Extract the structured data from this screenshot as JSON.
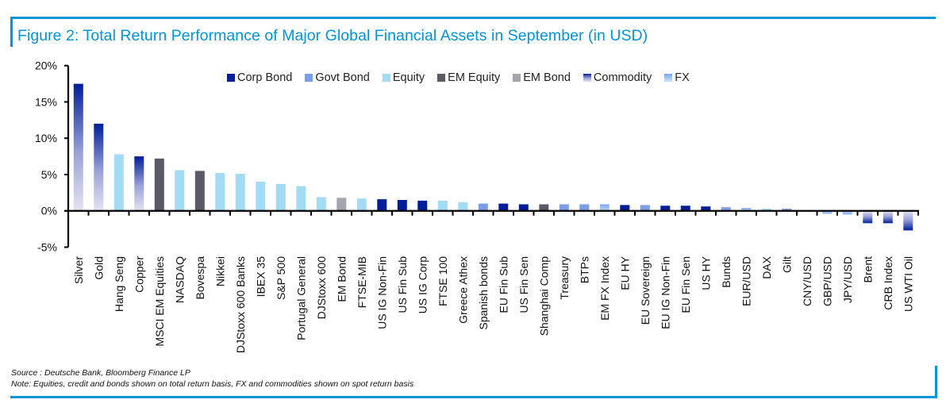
{
  "figure": {
    "title": "Figure 2: Total Return Performance of Major Global Financial Assets in September (in USD)",
    "source": "Source : Deutsche Bank, Bloomberg Finance LP",
    "note": "Note: Equities, credit and bonds shown on total return basis, FX and commodities shown on spot return basis",
    "accent_color": "#0095d9"
  },
  "legend": [
    {
      "label": "Corp Bond",
      "key": "corp"
    },
    {
      "label": "Govt Bond",
      "key": "govt"
    },
    {
      "label": "Equity",
      "key": "equity"
    },
    {
      "label": "EM Equity",
      "key": "emequity"
    },
    {
      "label": "EM Bond",
      "key": "embond"
    },
    {
      "label": "Commodity",
      "key": "commodity"
    },
    {
      "label": "FX",
      "key": "fx"
    }
  ],
  "colors": {
    "corp": "#001e9a",
    "govt": "#7b9ee8",
    "equity": "#a3dbf5",
    "emequity": "#5a5a66",
    "embond": "#a4a4ac",
    "commodity_dark": "#001e9a",
    "commodity_light": "#e2e2f0",
    "fx_dark": "#7fb3f0",
    "fx_light": "#c8e6fb"
  },
  "chart_data": {
    "type": "bar",
    "title": "Figure 2: Total Return Performance of Major Global Financial Assets in September (in USD)",
    "xlabel": "",
    "ylabel": "",
    "ylim": [
      -5,
      20
    ],
    "yticks": [
      -5,
      0,
      5,
      10,
      15,
      20
    ],
    "ytick_labels": [
      "-5%",
      "0%",
      "5%",
      "10%",
      "15%",
      "20%"
    ],
    "grid": false,
    "legend_position": "top-center",
    "categories": [
      "Silver",
      "Gold",
      "Hang Seng",
      "Copper",
      "MSCI EM Equities",
      "NASDAQ",
      "Bovespa",
      "Nikkei",
      "DJStoxx 600 Banks",
      "IBEX 35",
      "S&P 500",
      "Portugal General",
      "DJStoxx 600",
      "EM Bond",
      "FTSE-MIB",
      "US IG Non-Fin",
      "US Fin Sub",
      "US IG Corp",
      "FTSE 100",
      "Greece Athex",
      "Spanish bonds",
      "EU Fin Sub",
      "US Fin Sen",
      "Shanghai Comp",
      "Treasury",
      "BTPs",
      "EM FX Index",
      "EU HY",
      "EU Sovereign",
      "EU IG Non-Fin",
      "EU Fin Sen",
      "US HY",
      "Bunds",
      "EUR/USD",
      "DAX",
      "Gilt",
      "CNY/USD",
      "GBP/USD",
      "JPY/USD",
      "Brent",
      "CRB Index",
      "US WTI Oil"
    ],
    "values": [
      17.5,
      12.0,
      7.8,
      7.5,
      7.2,
      5.6,
      5.5,
      5.2,
      5.1,
      4.0,
      3.7,
      3.4,
      1.9,
      1.8,
      1.7,
      1.6,
      1.5,
      1.4,
      1.4,
      1.2,
      1.0,
      1.0,
      0.9,
      0.9,
      0.9,
      0.9,
      0.9,
      0.8,
      0.8,
      0.7,
      0.7,
      0.6,
      0.5,
      0.4,
      0.3,
      0.3,
      0.0,
      -0.4,
      -0.5,
      -1.7,
      -1.7,
      -2.7
    ],
    "asset_class": [
      "commodity",
      "commodity",
      "equity",
      "commodity",
      "emequity",
      "equity",
      "emequity",
      "equity",
      "equity",
      "equity",
      "equity",
      "equity",
      "equity",
      "embond",
      "equity",
      "corp",
      "corp",
      "corp",
      "equity",
      "equity",
      "govt",
      "corp",
      "corp",
      "emequity",
      "govt",
      "govt",
      "fx",
      "corp",
      "govt",
      "corp",
      "corp",
      "corp",
      "govt",
      "fx",
      "equity",
      "govt",
      "fx",
      "fx",
      "fx",
      "commodity",
      "commodity",
      "commodity"
    ]
  }
}
